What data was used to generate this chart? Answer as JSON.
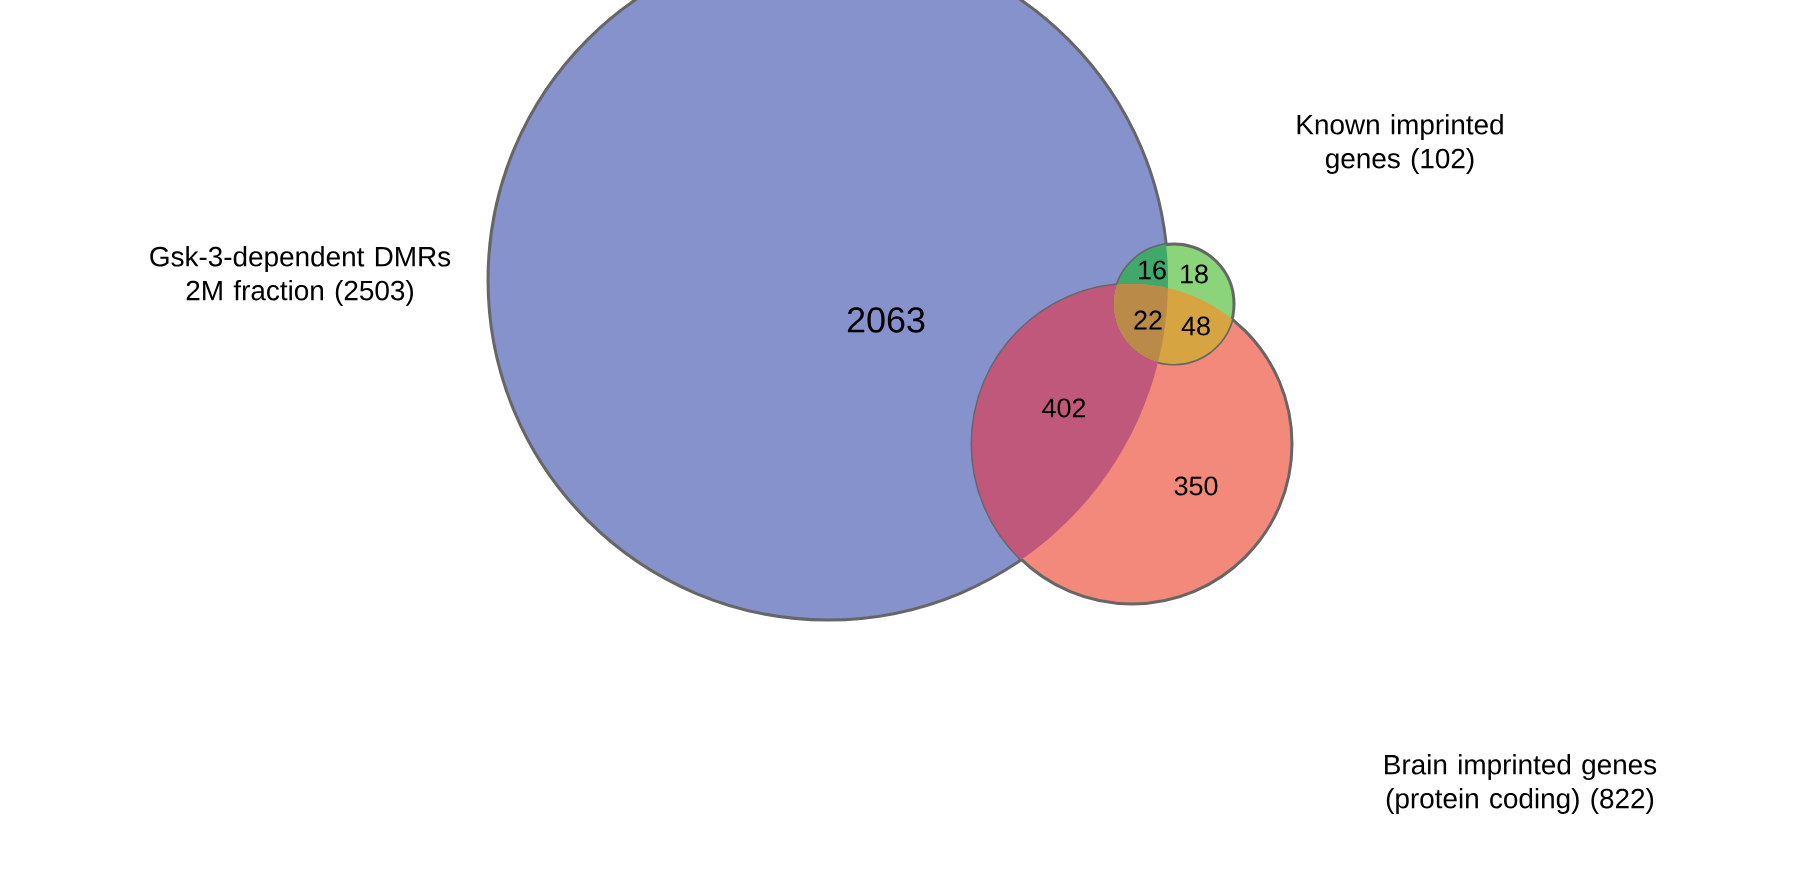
{
  "chart_data": {
    "type": "other",
    "categories": [
      null,
      null,
      null,
      null,
      null,
      null,
      null
    ],
    "values": [
      2063,
      16,
      18,
      22,
      48,
      402,
      350
    ],
    "colors": [
      "#8692cb",
      "#3fa86a",
      "#8cd47a",
      "#b98a48",
      "#d6a441",
      "#c0587c",
      "#f2897a"
    ],
    "data_labels": true,
    "annotations": [
      "Gsk-3-dependent DMRs 2M fraction (2503)",
      "Brain imprinted genes (protein coding) (822)",
      "Known imprinted genes (102)"
    ]
  }
}
